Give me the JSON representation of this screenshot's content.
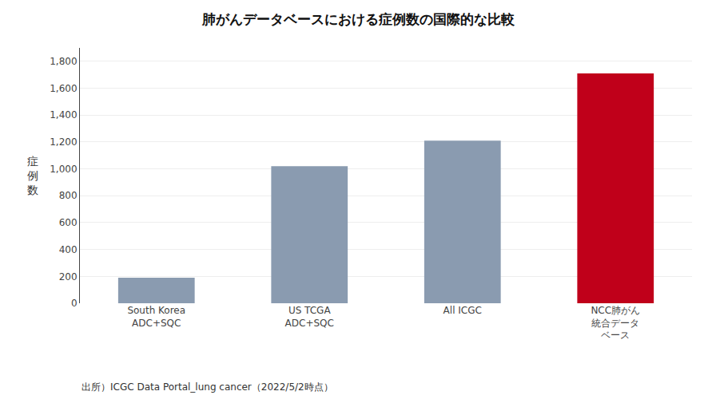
{
  "chart_data": {
    "type": "bar",
    "title": "肺がんデータベースにおける症例数の国際的な比較",
    "categories": [
      "South Korea\nADC+SQC",
      "US TCGA\nADC+SQC",
      "All ICGC",
      "NCC肺がん\n統合データ\nベース"
    ],
    "values": [
      190,
      1020,
      1210,
      1710
    ],
    "colors": [
      "#8a9bb0",
      "#8a9bb0",
      "#8a9bb0",
      "#c0001a"
    ],
    "ylabel": "症例数",
    "ylim": [
      0,
      1900
    ],
    "yticks": [
      0,
      200,
      400,
      600,
      800,
      {
        "value": 1000,
        "label": "1,000"
      },
      {
        "value": 1200,
        "label": "1,200"
      },
      {
        "value": 1400,
        "label": "1,400"
      },
      {
        "value": 1600,
        "label": "1,600"
      },
      {
        "value": 1800,
        "label": "1,800"
      }
    ],
    "annotations": [
      "出所）ICGC Data Portal_lung cancer（2022/5/2時点）"
    ],
    "grid": true
  }
}
